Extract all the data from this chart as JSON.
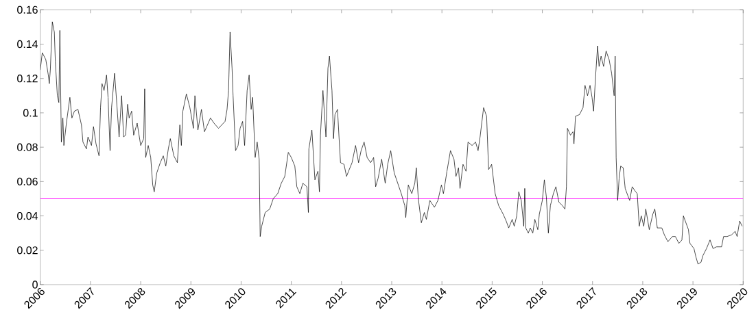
{
  "chart_data": {
    "type": "line",
    "color": "#000000",
    "line_style": "solid",
    "marker": "none",
    "grid": false,
    "xlim": [
      2006,
      2020
    ],
    "ylim": [
      0,
      0.16
    ],
    "xticks": [
      2006,
      2007,
      2008,
      2009,
      2010,
      2011,
      2012,
      2013,
      2014,
      2015,
      2016,
      2017,
      2018,
      2019,
      2020
    ],
    "yticks": [
      0,
      0.02,
      0.04,
      0.06,
      0.08,
      0.1,
      0.12,
      0.14,
      0.16
    ],
    "ref_lines": [
      {
        "axis": "y",
        "value": 0.05,
        "color": "#ff00ff"
      }
    ],
    "x": [
      2006.0,
      2006.04,
      2006.11,
      2006.16,
      2006.18,
      2006.2,
      2006.24,
      2006.28,
      2006.3,
      2006.34,
      2006.37,
      2006.39,
      2006.42,
      2006.45,
      2006.47,
      2006.52,
      2006.59,
      2006.63,
      2006.68,
      2006.75,
      2006.82,
      2006.85,
      2006.92,
      2006.95,
      2007.02,
      2007.06,
      2007.11,
      2007.17,
      2007.2,
      2007.23,
      2007.27,
      2007.32,
      2007.35,
      2007.39,
      2007.42,
      2007.48,
      2007.52,
      2007.57,
      2007.62,
      2007.66,
      2007.7,
      2007.74,
      2007.77,
      2007.82,
      2007.86,
      2007.93,
      2008.0,
      2008.06,
      2008.08,
      2008.1,
      2008.15,
      2008.2,
      2008.24,
      2008.27,
      2008.32,
      2008.39,
      2008.45,
      2008.5,
      2008.55,
      2008.59,
      2008.66,
      2008.73,
      2008.78,
      2008.81,
      2008.84,
      2008.91,
      2008.98,
      2009.05,
      2009.08,
      2009.14,
      2009.21,
      2009.27,
      2009.39,
      2009.46,
      2009.55,
      2009.68,
      2009.72,
      2009.75,
      2009.78,
      2009.82,
      2009.84,
      2009.89,
      2009.94,
      2009.98,
      2010.03,
      2010.07,
      2010.12,
      2010.16,
      2010.2,
      2010.23,
      2010.28,
      2010.32,
      2010.36,
      2010.38,
      2010.41,
      2010.48,
      2010.57,
      2010.64,
      2010.73,
      2010.8,
      2010.87,
      2010.94,
      2011.0,
      2011.07,
      2011.11,
      2011.17,
      2011.23,
      2011.31,
      2011.34,
      2011.35,
      2011.41,
      2011.47,
      2011.53,
      2011.56,
      2011.58,
      2011.63,
      2011.69,
      2011.73,
      2011.76,
      2011.81,
      2011.84,
      2011.87,
      2011.92,
      2011.95,
      2011.98,
      2012.05,
      2012.1,
      2012.14,
      2012.21,
      2012.28,
      2012.34,
      2012.39,
      2012.45,
      2012.51,
      2012.58,
      2012.64,
      2012.68,
      2012.73,
      2012.8,
      2012.87,
      2012.92,
      2012.98,
      2013.05,
      2013.12,
      2013.19,
      2013.26,
      2013.28,
      2013.33,
      2013.4,
      2013.46,
      2013.49,
      2013.53,
      2013.59,
      2013.65,
      2013.69,
      2013.76,
      2013.85,
      2013.92,
      2013.99,
      2014.03,
      2014.1,
      2014.17,
      2014.24,
      2014.28,
      2014.33,
      2014.36,
      2014.42,
      2014.48,
      2014.52,
      2014.6,
      2014.67,
      2014.72,
      2014.76,
      2014.83,
      2014.89,
      2014.93,
      2014.99,
      2015.06,
      2015.13,
      2015.22,
      2015.28,
      2015.33,
      2015.4,
      2015.44,
      2015.49,
      2015.53,
      2015.58,
      2015.63,
      2015.65,
      2015.67,
      2015.72,
      2015.76,
      2015.81,
      2015.85,
      2015.91,
      2015.94,
      2016.0,
      2016.04,
      2016.08,
      2016.12,
      2016.16,
      2016.22,
      2016.27,
      2016.33,
      2016.4,
      2016.45,
      2016.48,
      2016.5,
      2016.56,
      2016.61,
      2016.63,
      2016.66,
      2016.74,
      2016.81,
      2016.85,
      2016.9,
      2016.95,
      2016.99,
      2017.02,
      2017.06,
      2017.1,
      2017.13,
      2017.17,
      2017.22,
      2017.27,
      2017.33,
      2017.38,
      2017.43,
      2017.45,
      2017.47,
      2017.5,
      2017.53,
      2017.56,
      2017.61,
      2017.65,
      2017.7,
      2017.74,
      2017.79,
      2017.86,
      2017.89,
      2017.93,
      2017.97,
      2018.02,
      2018.06,
      2018.13,
      2018.2,
      2018.24,
      2018.29,
      2018.38,
      2018.43,
      2018.5,
      2018.59,
      2018.65,
      2018.72,
      2018.78,
      2018.81,
      2018.86,
      2018.91,
      2018.94,
      2019.02,
      2019.06,
      2019.1,
      2019.16,
      2019.2,
      2019.27,
      2019.34,
      2019.4,
      2019.47,
      2019.57,
      2019.61,
      2019.68,
      2019.77,
      2019.84,
      2019.88,
      2019.93,
      2019.98
    ],
    "values": [
      0.125,
      0.135,
      0.131,
      0.122,
      0.117,
      0.125,
      0.153,
      0.147,
      0.13,
      0.11,
      0.106,
      0.148,
      0.083,
      0.097,
      0.081,
      0.094,
      0.109,
      0.097,
      0.101,
      0.102,
      0.093,
      0.083,
      0.079,
      0.086,
      0.081,
      0.092,
      0.082,
      0.075,
      0.103,
      0.117,
      0.113,
      0.122,
      0.109,
      0.078,
      0.103,
      0.123,
      0.107,
      0.086,
      0.11,
      0.086,
      0.087,
      0.105,
      0.097,
      0.101,
      0.087,
      0.094,
      0.081,
      0.085,
      0.114,
      0.074,
      0.081,
      0.074,
      0.058,
      0.054,
      0.065,
      0.071,
      0.075,
      0.069,
      0.079,
      0.085,
      0.075,
      0.071,
      0.093,
      0.081,
      0.101,
      0.111,
      0.103,
      0.091,
      0.11,
      0.09,
      0.102,
      0.089,
      0.097,
      0.094,
      0.091,
      0.095,
      0.102,
      0.113,
      0.147,
      0.126,
      0.11,
      0.078,
      0.081,
      0.091,
      0.095,
      0.081,
      0.113,
      0.122,
      0.102,
      0.109,
      0.074,
      0.083,
      0.073,
      0.028,
      0.034,
      0.042,
      0.044,
      0.05,
      0.053,
      0.059,
      0.063,
      0.077,
      0.074,
      0.069,
      0.057,
      0.053,
      0.059,
      0.057,
      0.042,
      0.079,
      0.09,
      0.061,
      0.066,
      0.054,
      0.087,
      0.113,
      0.086,
      0.126,
      0.133,
      0.113,
      0.085,
      0.099,
      0.102,
      0.086,
      0.071,
      0.07,
      0.063,
      0.066,
      0.071,
      0.081,
      0.071,
      0.078,
      0.083,
      0.074,
      0.071,
      0.074,
      0.057,
      0.062,
      0.073,
      0.059,
      0.07,
      0.078,
      0.065,
      0.059,
      0.053,
      0.046,
      0.039,
      0.058,
      0.053,
      0.059,
      0.068,
      0.05,
      0.036,
      0.042,
      0.038,
      0.049,
      0.045,
      0.049,
      0.058,
      0.053,
      0.066,
      0.078,
      0.073,
      0.063,
      0.068,
      0.056,
      0.07,
      0.066,
      0.083,
      0.081,
      0.083,
      0.078,
      0.086,
      0.103,
      0.098,
      0.067,
      0.07,
      0.053,
      0.046,
      0.041,
      0.037,
      0.033,
      0.038,
      0.034,
      0.04,
      0.054,
      0.049,
      0.034,
      0.056,
      0.033,
      0.03,
      0.033,
      0.03,
      0.038,
      0.032,
      0.041,
      0.049,
      0.061,
      0.051,
      0.03,
      0.046,
      0.053,
      0.057,
      0.048,
      0.046,
      0.044,
      0.057,
      0.091,
      0.087,
      0.089,
      0.082,
      0.098,
      0.099,
      0.103,
      0.116,
      0.11,
      0.116,
      0.109,
      0.101,
      0.121,
      0.139,
      0.127,
      0.133,
      0.127,
      0.136,
      0.131,
      0.123,
      0.11,
      0.133,
      0.074,
      0.049,
      0.062,
      0.069,
      0.068,
      0.056,
      0.052,
      0.049,
      0.057,
      0.054,
      0.053,
      0.034,
      0.04,
      0.034,
      0.044,
      0.032,
      0.041,
      0.044,
      0.033,
      0.033,
      0.029,
      0.025,
      0.028,
      0.028,
      0.024,
      0.026,
      0.04,
      0.036,
      0.032,
      0.024,
      0.021,
      0.016,
      0.012,
      0.013,
      0.017,
      0.021,
      0.026,
      0.021,
      0.022,
      0.022,
      0.028,
      0.028,
      0.029,
      0.031,
      0.028,
      0.037,
      0.034
    ]
  }
}
